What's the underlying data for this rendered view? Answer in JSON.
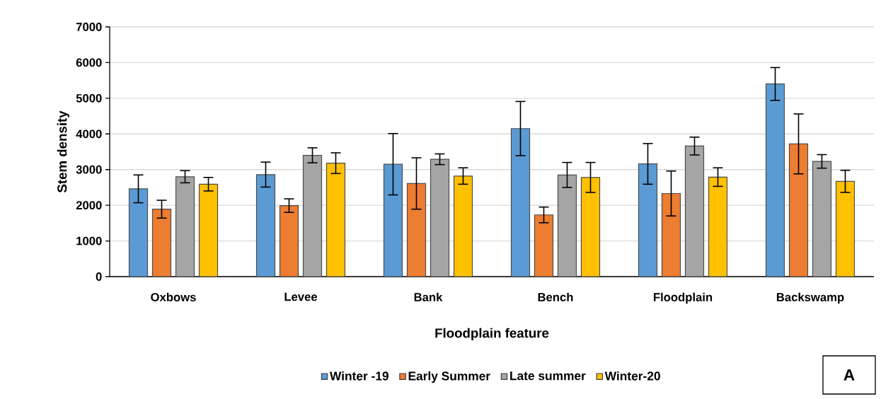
{
  "chart_data": {
    "type": "bar",
    "xlabel": "Floodplain feature",
    "ylabel": "Stem density",
    "categories": [
      "Oxbows",
      "Levee",
      "Bank",
      "Bench",
      "Floodplain",
      "Backswamp"
    ],
    "series": [
      {
        "name": "Winter -19",
        "color": "#5b9bd5",
        "values": [
          2460,
          2860,
          3150,
          4150,
          3160,
          5400
        ],
        "errors": [
          390,
          350,
          860,
          760,
          570,
          460
        ]
      },
      {
        "name": "Early Summer",
        "color": "#ed7d31",
        "values": [
          1890,
          1990,
          2610,
          1730,
          2330,
          3720
        ],
        "errors": [
          250,
          190,
          720,
          220,
          630,
          840
        ]
      },
      {
        "name": "Late summer",
        "color": "#a5a5a5",
        "values": [
          2800,
          3400,
          3290,
          2850,
          3660,
          3230
        ],
        "errors": [
          170,
          210,
          150,
          350,
          250,
          190
        ]
      },
      {
        "name": "Winter-20",
        "color": "#ffc000",
        "values": [
          2590,
          3180,
          2820,
          2780,
          2790,
          2670
        ],
        "errors": [
          190,
          290,
          230,
          420,
          260,
          310
        ]
      }
    ],
    "ylim": [
      0,
      7000
    ],
    "yticks": [
      0,
      1000,
      2000,
      3000,
      4000,
      5000,
      6000,
      7000
    ],
    "grid": "y",
    "legend": "bottom",
    "annotations": [
      "A"
    ]
  }
}
